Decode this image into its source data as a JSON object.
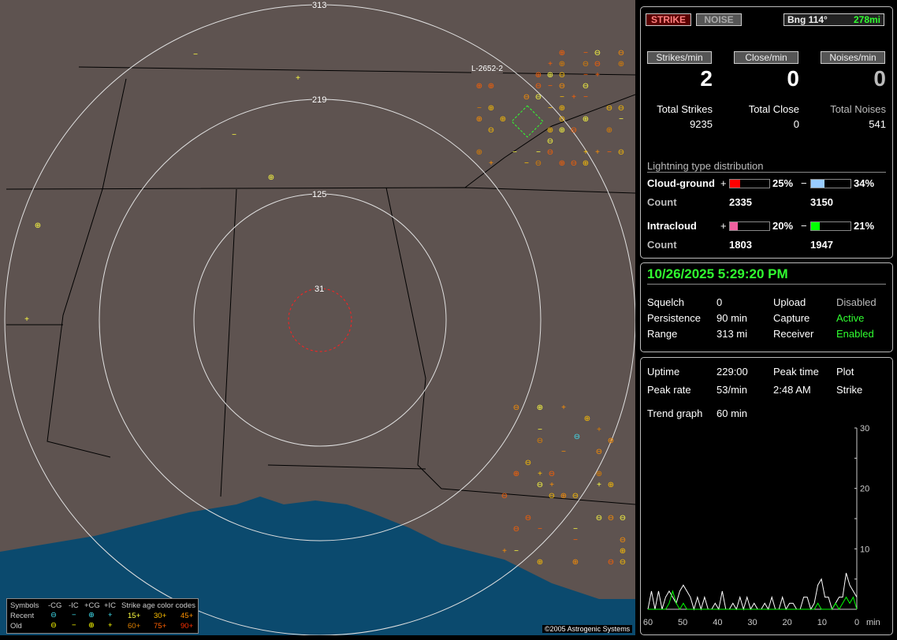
{
  "map": {
    "ring_labels": [
      "313",
      "219",
      "125",
      "31"
    ],
    "track_label": "L-2652-2",
    "copyright": "©2005 Astrogenic Systems",
    "colors": {
      "land": "#5e5350",
      "water": "#0b4a6e",
      "rings": "#e0e0e0",
      "close_ring": "#ff2020"
    }
  },
  "legend": {
    "symbols": "Symbols",
    "cols": [
      "-CG",
      "-IC",
      "+CG",
      "+IC"
    ],
    "recent": "Recent",
    "old": "Old",
    "age_title": "Strike age color codes",
    "ages_recent": [
      "15+",
      "30+",
      "45+"
    ],
    "ages_old": [
      "60+",
      "75+",
      "90+"
    ],
    "age_colors": [
      "#ffff40",
      "#ffc000",
      "#ff9000",
      "#e08000",
      "#ff6000",
      "#ff3000"
    ]
  },
  "top": {
    "strike_btn": "STRIKE",
    "noise_btn": "NOISE",
    "bearing": "Bng 114°",
    "distance": "278mi"
  },
  "rates": [
    {
      "label": "Strikes/min",
      "value": "2",
      "total_label": "Total Strikes",
      "total": "9235"
    },
    {
      "label": "Close/min",
      "value": "0",
      "total_label": "Total Close",
      "total": "0"
    },
    {
      "label": "Noises/min",
      "value": "0",
      "total_label": "Total Noises",
      "total": "541"
    }
  ],
  "dist": {
    "title": "Lightning type distribution",
    "cg": {
      "label": "Cloud-ground",
      "pos_pct": 25,
      "pos_text": "25%",
      "neg_pct": 34,
      "neg_text": "34%",
      "pos_count": "2335",
      "neg_count": "3150"
    },
    "ic": {
      "label": "Intracloud",
      "pos_pct": 20,
      "pos_text": "20%",
      "neg_pct": 21,
      "neg_text": "21%",
      "pos_count": "1803",
      "neg_count": "1947"
    },
    "count_label": "Count",
    "plus": "+",
    "minus": "−",
    "colors": {
      "cg_pos": "#ff0000",
      "cg_neg": "#99ccff",
      "ic_pos": "#f060a0",
      "ic_neg": "#00ff00"
    }
  },
  "status": {
    "datetime": "10/26/2025 5:29:20 PM",
    "rows": [
      [
        "Squelch",
        "0",
        "Upload",
        "Disabled"
      ],
      [
        "Persistence",
        "90 min",
        "Capture",
        "Active"
      ],
      [
        "Range",
        "313 mi",
        "Receiver",
        "Enabled"
      ]
    ]
  },
  "stats": {
    "uptime_label": "Uptime",
    "uptime": "229:00",
    "peak_time_label": "Peak time",
    "plot_label": "Plot",
    "peak_rate_label": "Peak rate",
    "peak_rate": "53/min",
    "peak_time": "2:48 AM",
    "plot": "Strike",
    "trend_label": "Trend graph",
    "trend": "60 min"
  },
  "chart_data": {
    "type": "line",
    "xlabel": "min",
    "x_ticks": [
      "60",
      "50",
      "40",
      "30",
      "20",
      "10",
      "0"
    ],
    "y_ticks": [
      "30",
      "20",
      "10"
    ],
    "xlim": [
      60,
      0
    ],
    "ylim": [
      0,
      30
    ],
    "series": [
      {
        "color": "#ffffff",
        "values": [
          0,
          3,
          0,
          3,
          0,
          2,
          3,
          2,
          1,
          3,
          4,
          3,
          2,
          0,
          2,
          0,
          2,
          0,
          0,
          1,
          0,
          3,
          0,
          0,
          1,
          0,
          2,
          0,
          2,
          0,
          1,
          0,
          0,
          1,
          0,
          2,
          0,
          0,
          2,
          0,
          1,
          1,
          0,
          0,
          2,
          2,
          0,
          1,
          4,
          5,
          2,
          2,
          0,
          1,
          2,
          2,
          6,
          4,
          3,
          2
        ]
      },
      {
        "color": "#00ff00",
        "values": [
          0,
          0,
          0,
          0,
          0,
          0,
          1,
          3,
          1,
          0,
          1,
          0,
          0,
          0,
          0,
          0,
          0,
          0,
          0,
          0,
          0,
          0,
          0,
          0,
          0,
          0,
          0,
          0,
          0,
          0,
          0,
          0,
          0,
          0,
          0,
          0,
          0,
          0,
          0,
          0,
          0,
          0,
          0,
          0,
          0,
          0,
          0,
          0,
          1,
          0,
          0,
          0,
          0,
          1,
          0,
          1,
          2,
          1,
          2,
          0
        ]
      }
    ]
  }
}
